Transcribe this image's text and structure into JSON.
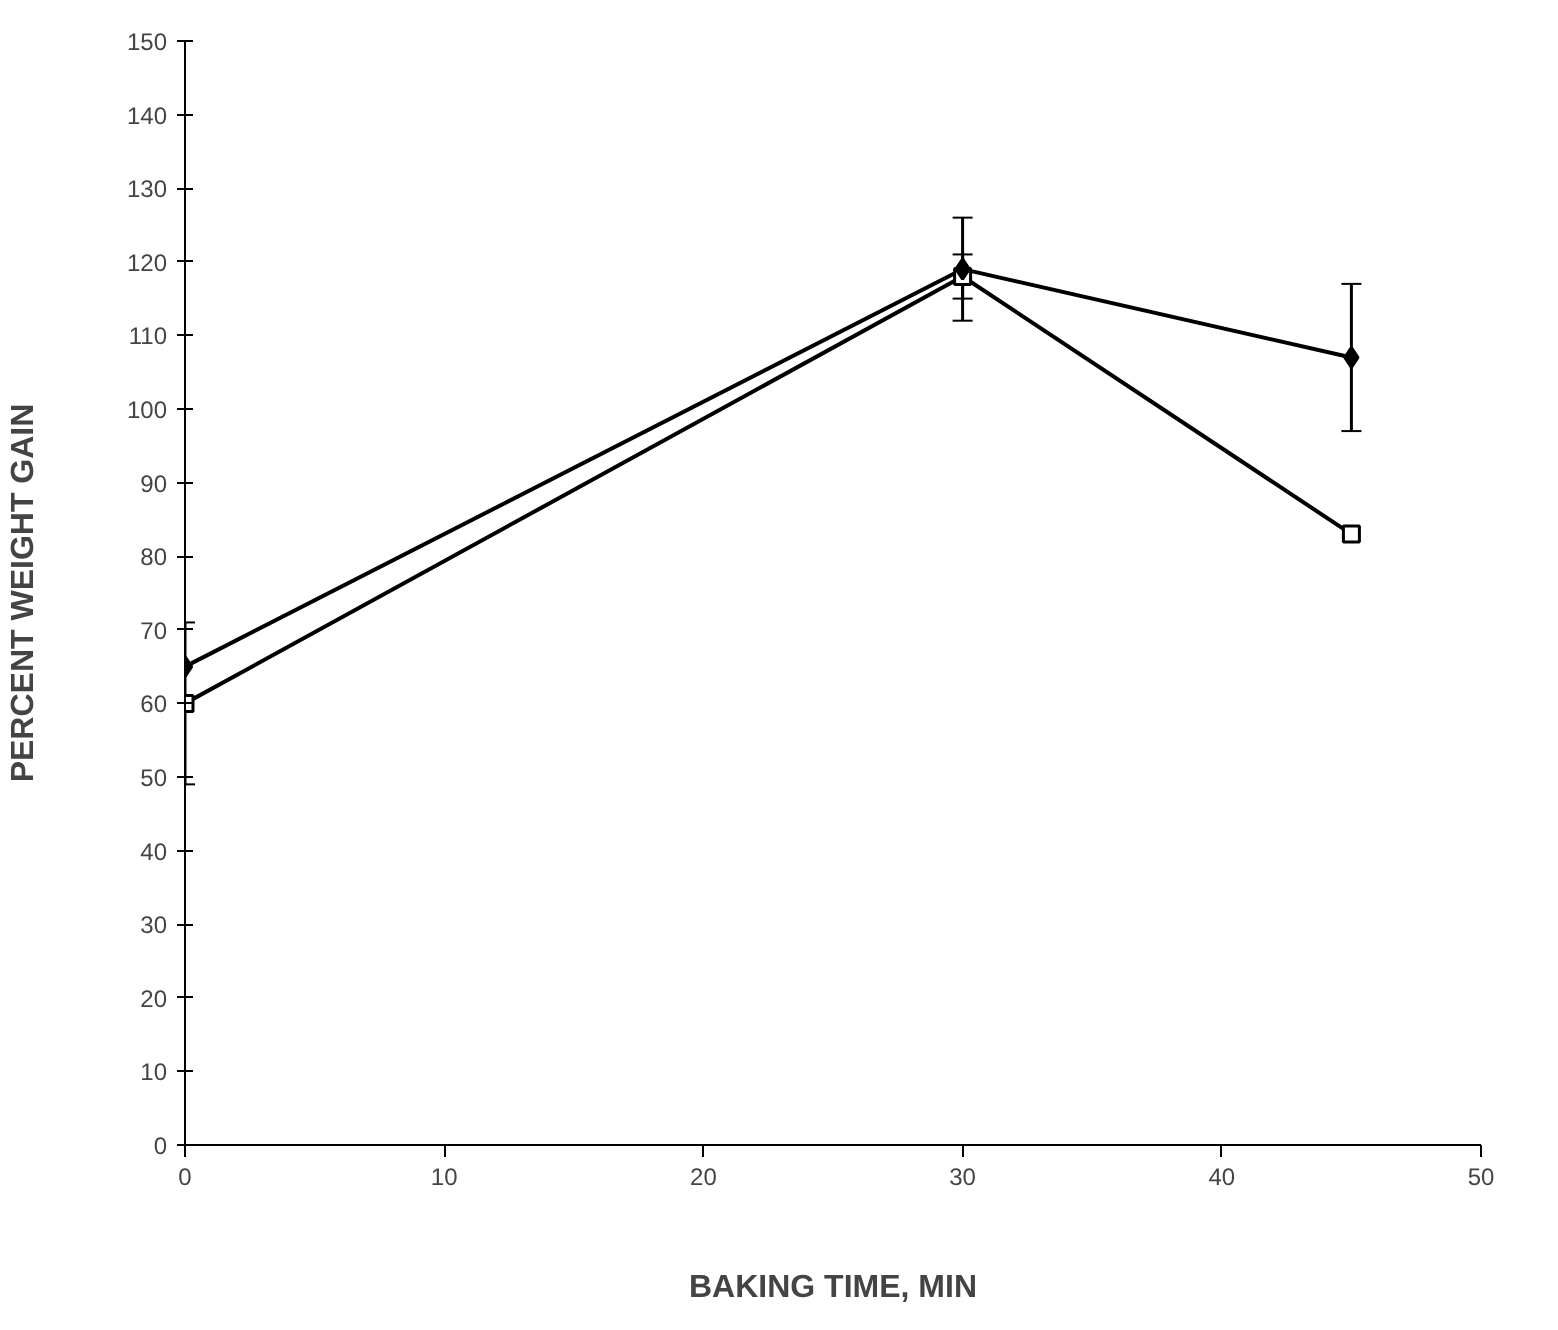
{
  "chart_data": {
    "type": "line",
    "xlabel": "BAKING TIME, MIN",
    "ylabel": "PERCENT WEIGHT GAIN",
    "x": [
      0,
      30,
      45
    ],
    "xlim": [
      0,
      50
    ],
    "xticks": [
      0,
      10,
      20,
      30,
      40,
      50
    ],
    "ylim": [
      0,
      150
    ],
    "yticks": [
      0,
      10,
      20,
      30,
      40,
      50,
      60,
      70,
      80,
      90,
      100,
      110,
      120,
      130,
      140,
      150
    ],
    "grid": false,
    "line_style": "solid",
    "series": [
      {
        "color": "#000000",
        "marker": "diamond",
        "values": [
          65,
          119,
          107
        ],
        "errors": [
          null,
          7,
          10
        ]
      },
      {
        "color": "#000000",
        "marker": "square",
        "values": [
          60,
          118,
          83
        ],
        "errors": [
          11,
          3,
          null
        ]
      }
    ]
  }
}
